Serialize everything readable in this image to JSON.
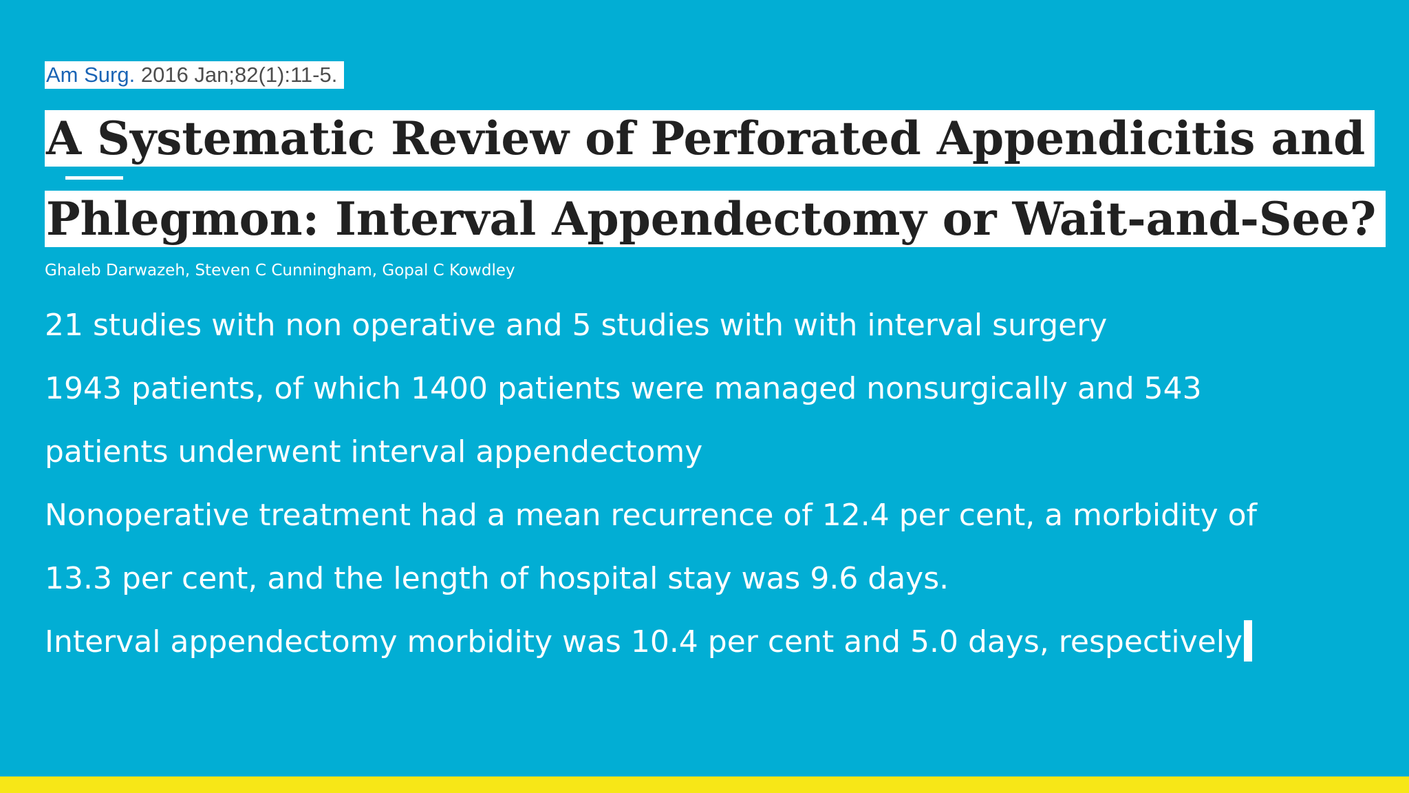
{
  "citation": {
    "journal": "Am Surg.",
    "date": "2016 Jan;82(1):11-5."
  },
  "title": {
    "line1": "A Systematic Review of Perforated Appendicitis and",
    "line2": "Phlegmon: Interval Appendectomy or Wait-and-See?"
  },
  "authors": "Ghaleb Darwazeh, Steven C Cunningham, Gopal C Kowdley",
  "body_lines": [
    "21 studies with non operative and 5 studies with with interval surgery",
    "1943 patients, of which 1400 patients were managed nonsurgically and 543",
    "patients underwent interval appendectomy",
    "Nonoperative treatment had a mean recurrence of 12.4 per cent, a morbidity of",
    "13.3 per cent, and the length of hospital stay was 9.6 days.",
    "Interval appendectomy morbidity was 10.4 per cent and 5.0 days, respectively"
  ],
  "colors": {
    "background": "#02aed4",
    "band": "#f7e717",
    "title_text": "#212121",
    "journal_link": "#1a64b5"
  }
}
